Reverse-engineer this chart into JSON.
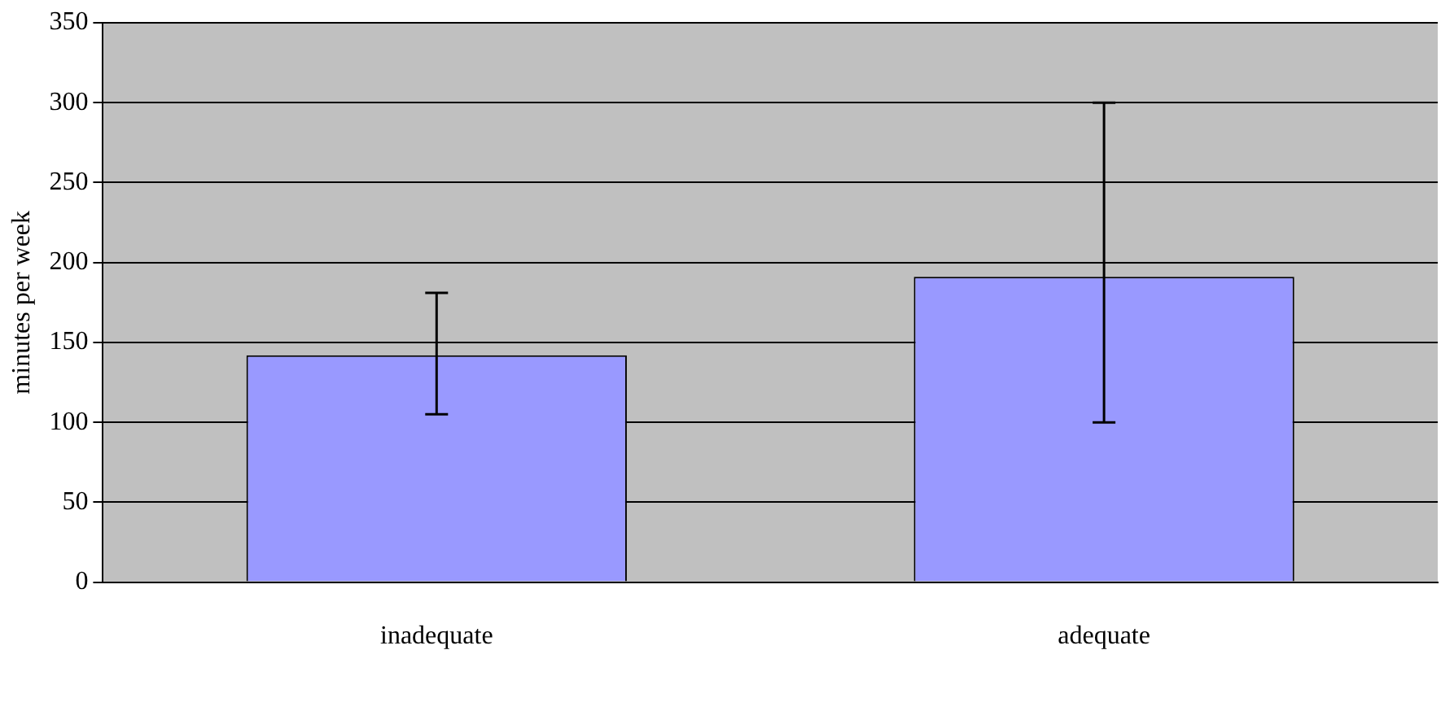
{
  "chart_data": {
    "type": "bar",
    "ylabel": "minutes per week",
    "categories": [
      "inadequate",
      "adequate"
    ],
    "values": [
      142,
      191
    ],
    "color": "#9999ff",
    "errors": [
      [
        105,
        181
      ],
      [
        100,
        300
      ]
    ],
    "ylim": [
      0,
      350
    ],
    "yticks": [
      0,
      50,
      100,
      150,
      200,
      250,
      300,
      350
    ],
    "grid": "y"
  }
}
